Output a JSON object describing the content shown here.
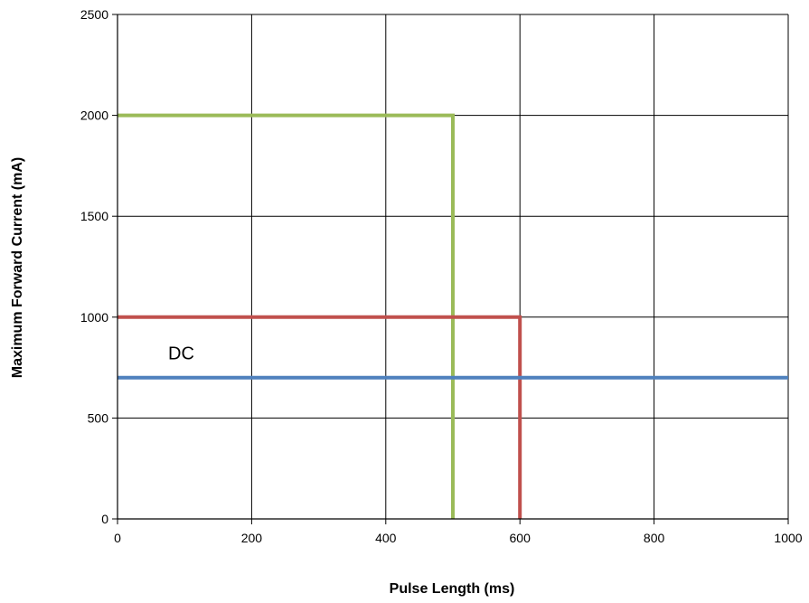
{
  "chart_data": {
    "type": "line",
    "xlabel": "Pulse Length (ms)",
    "ylabel": "Maximum Forward Current (mA)",
    "xlim": [
      0,
      1000
    ],
    "ylim": [
      0,
      2500
    ],
    "x_ticks": [
      0,
      200,
      400,
      600,
      800,
      1000
    ],
    "y_ticks": [
      0,
      500,
      1000,
      1500,
      2000,
      2500
    ],
    "x_tick_labels": [
      "0",
      "200",
      "400",
      "600",
      "800",
      "1000"
    ],
    "y_tick_labels": [
      "0",
      "500",
      "1000",
      "1500",
      "2000",
      "2500"
    ],
    "grid": true,
    "legend": "none",
    "series": [
      {
        "color": "#9BBB59",
        "points": [
          [
            0,
            2000
          ],
          [
            500,
            2000
          ],
          [
            500,
            0
          ]
        ]
      },
      {
        "color": "#C0504D",
        "points": [
          [
            0,
            1000
          ],
          [
            600,
            1000
          ],
          [
            600,
            0
          ]
        ]
      },
      {
        "name": "DC",
        "color": "#4F81BD",
        "points": [
          [
            0,
            700
          ],
          [
            1000,
            700
          ]
        ]
      }
    ],
    "annotations": [
      {
        "text": "DC",
        "x": 95,
        "y": 790
      }
    ]
  }
}
